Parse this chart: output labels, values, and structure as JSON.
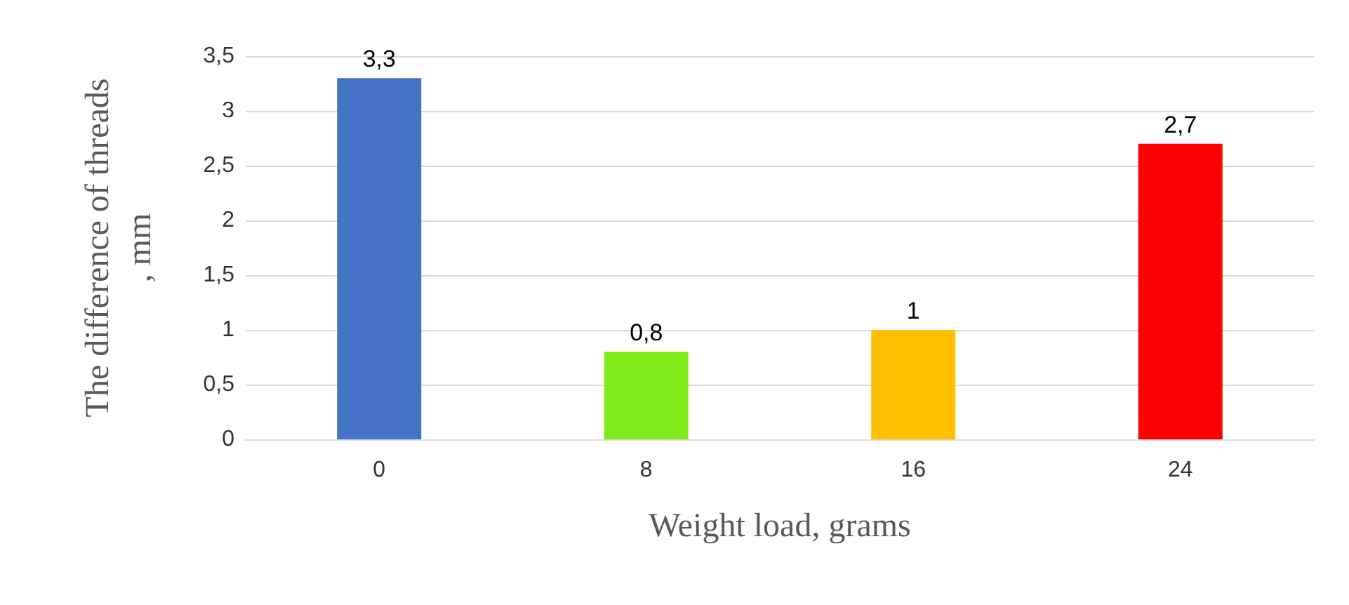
{
  "chart_data": {
    "type": "bar",
    "categories": [
      "0",
      "8",
      "16",
      "24"
    ],
    "values": [
      3.3,
      0.8,
      1,
      2.7
    ],
    "colors": [
      "#4472c4",
      "#7fec1a",
      "#ffc000",
      "#ff0000"
    ],
    "value_labels": [
      "3,3",
      "0,8",
      "1",
      "2,7"
    ],
    "xlabel": "Weight load, grams",
    "ylabel": "The difference of threads\n, mm",
    "ylim": [
      0,
      3.5
    ],
    "yticks": [
      {
        "value": 0,
        "label": "0"
      },
      {
        "value": 0.5,
        "label": "0,5"
      },
      {
        "value": 1,
        "label": "1"
      },
      {
        "value": 1.5,
        "label": "1,5"
      },
      {
        "value": 2,
        "label": "2"
      },
      {
        "value": 2.5,
        "label": "2,5"
      },
      {
        "value": 3,
        "label": "3"
      },
      {
        "value": 3.5,
        "label": "3,5"
      }
    ],
    "grid": "y"
  }
}
